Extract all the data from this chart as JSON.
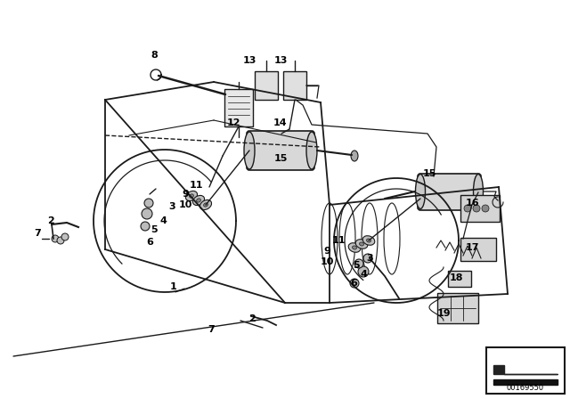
{
  "bg_color": "#ffffff",
  "line_color": "#1a1a1a",
  "text_color": "#000000",
  "figsize": [
    6.4,
    4.48
  ],
  "dpi": 100,
  "part_number": "00169550",
  "label_fs": 8,
  "labels": [
    [
      "1",
      195,
      322
    ],
    [
      "2",
      283,
      358
    ],
    [
      "2",
      57,
      248
    ],
    [
      "3",
      193,
      232
    ],
    [
      "3",
      415,
      290
    ],
    [
      "4",
      183,
      248
    ],
    [
      "4",
      408,
      308
    ],
    [
      "5",
      173,
      258
    ],
    [
      "5",
      400,
      298
    ],
    [
      "6",
      168,
      272
    ],
    [
      "6",
      397,
      318
    ],
    [
      "7",
      237,
      370
    ],
    [
      "7",
      42,
      262
    ],
    [
      "8",
      173,
      62
    ],
    [
      "9",
      208,
      218
    ],
    [
      "9",
      367,
      282
    ],
    [
      "10",
      208,
      230
    ],
    [
      "10",
      367,
      294
    ],
    [
      "11",
      220,
      208
    ],
    [
      "11",
      380,
      270
    ],
    [
      "12",
      262,
      138
    ],
    [
      "13",
      280,
      68
    ],
    [
      "13",
      315,
      68
    ],
    [
      "14",
      315,
      138
    ],
    [
      "15",
      315,
      178
    ],
    [
      "15",
      482,
      195
    ],
    [
      "16",
      530,
      228
    ],
    [
      "17",
      530,
      278
    ],
    [
      "18",
      512,
      312
    ],
    [
      "19",
      498,
      352
    ]
  ]
}
